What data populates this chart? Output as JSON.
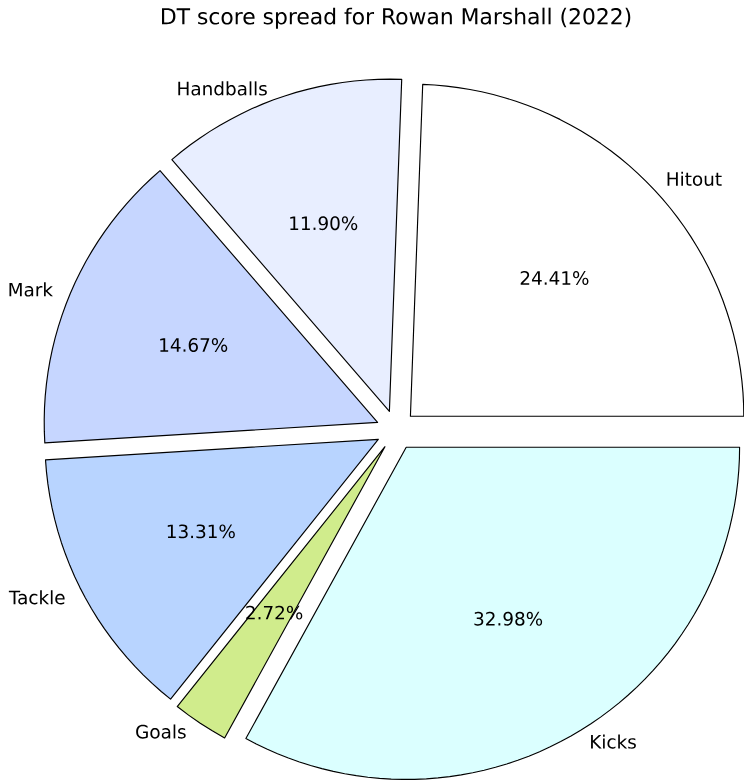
{
  "chart_data": {
    "type": "pie",
    "title": "DT score spread for Rowan Marshall (2022)",
    "categories": [
      "Hitout",
      "Handballs",
      "Mark",
      "Tackle",
      "Goals",
      "Kicks"
    ],
    "values": [
      24.41,
      11.9,
      14.67,
      13.31,
      2.72,
      32.98
    ],
    "value_labels": [
      "24.41%",
      "11.90%",
      "14.67%",
      "13.31%",
      "2.72%",
      "32.98%"
    ],
    "colors": [
      "#ffffff",
      "#e8eeff",
      "#c6d6ff",
      "#b8d4ff",
      "#d0ec8c",
      "#dbffff"
    ]
  }
}
